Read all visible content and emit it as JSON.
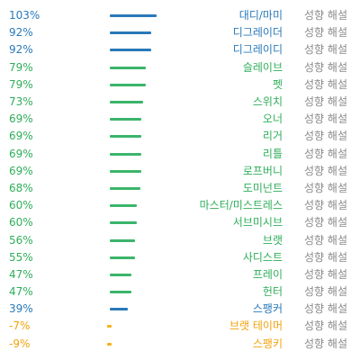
{
  "action_label": "성향 해설",
  "colors": {
    "blue": "#2979b9",
    "green": "#2fae5a",
    "orange": "#f3a20c"
  },
  "rows": [
    {
      "percent": "103%",
      "value": 103,
      "label": "대디/마미",
      "color": "blue"
    },
    {
      "percent": "92%",
      "value": 92,
      "label": "디그레이더",
      "color": "blue"
    },
    {
      "percent": "92%",
      "value": 92,
      "label": "디그레이디",
      "color": "blue"
    },
    {
      "percent": "79%",
      "value": 79,
      "label": "슬레이브",
      "color": "green"
    },
    {
      "percent": "79%",
      "value": 79,
      "label": "펫",
      "color": "green"
    },
    {
      "percent": "73%",
      "value": 73,
      "label": "스위치",
      "color": "green"
    },
    {
      "percent": "69%",
      "value": 69,
      "label": "오너",
      "color": "green"
    },
    {
      "percent": "69%",
      "value": 69,
      "label": "리거",
      "color": "green"
    },
    {
      "percent": "69%",
      "value": 69,
      "label": "리틀",
      "color": "green"
    },
    {
      "percent": "69%",
      "value": 69,
      "label": "로프버니",
      "color": "green"
    },
    {
      "percent": "68%",
      "value": 68,
      "label": "도미넌트",
      "color": "green"
    },
    {
      "percent": "60%",
      "value": 60,
      "label": "마스터/미스트레스",
      "color": "green"
    },
    {
      "percent": "60%",
      "value": 60,
      "label": "서브미시브",
      "color": "green"
    },
    {
      "percent": "56%",
      "value": 56,
      "label": "브랫",
      "color": "green"
    },
    {
      "percent": "55%",
      "value": 55,
      "label": "사디스트",
      "color": "green"
    },
    {
      "percent": "47%",
      "value": 47,
      "label": "프레이",
      "color": "green"
    },
    {
      "percent": "47%",
      "value": 47,
      "label": "헌터",
      "color": "green"
    },
    {
      "percent": "39%",
      "value": 39,
      "label": "스팽커",
      "color": "blue"
    },
    {
      "percent": "-7%",
      "value": -7,
      "label": "브랫 테이머",
      "color": "orange"
    },
    {
      "percent": "-9%",
      "value": -9,
      "label": "스팽키",
      "color": "orange"
    }
  ]
}
